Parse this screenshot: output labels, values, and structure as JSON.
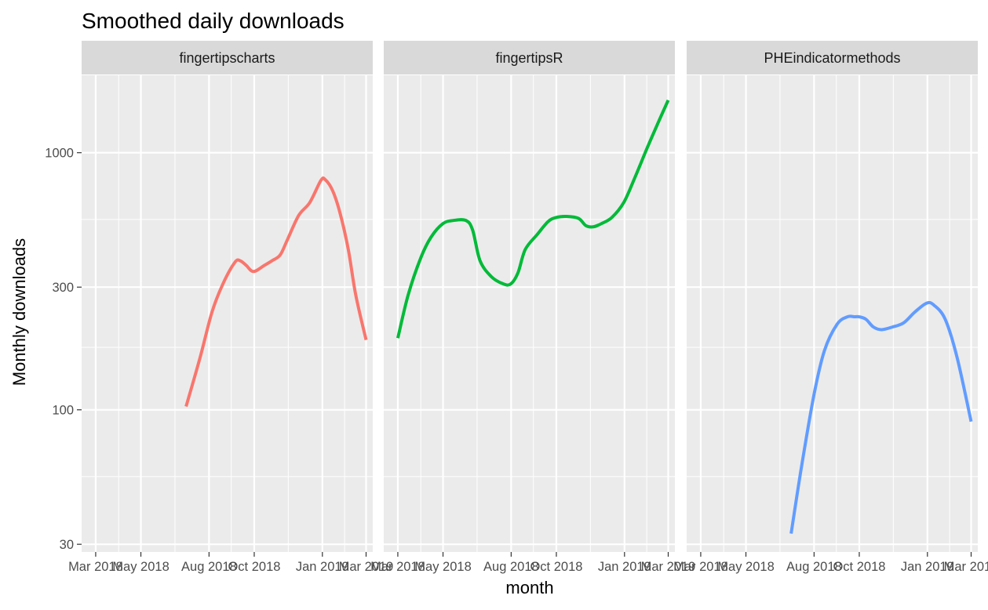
{
  "chart_data": {
    "type": "line",
    "title": "Smoothed daily downloads",
    "xlabel": "month",
    "ylabel": "Monthly downloads",
    "y_scale": "log10",
    "ylim": [
      28,
      2000
    ],
    "y_ticks": [
      {
        "value": 30,
        "label": "30"
      },
      {
        "value": 100,
        "label": "100"
      },
      {
        "value": 300,
        "label": "300"
      },
      {
        "value": 1000,
        "label": "1000"
      }
    ],
    "y_minor_ticks": [
      55,
      175,
      550
    ],
    "xlim": [
      "2018-02-10",
      "2019-03-10"
    ],
    "x_ticks": [
      {
        "value": "2018-03-01",
        "label": "Mar 2018"
      },
      {
        "value": "2018-05-01",
        "label": "May 2018"
      },
      {
        "value": "2018-08-01",
        "label": "Aug 2018"
      },
      {
        "value": "2018-10-01",
        "label": "Oct 2018"
      },
      {
        "value": "2019-01-01",
        "label": "Jan 2019"
      },
      {
        "value": "2019-03-01",
        "label": "Mar 2019"
      }
    ],
    "x_minor_ticks": [
      "2018-04-01",
      "2018-06-16",
      "2018-08-31",
      "2018-11-16",
      "2019-01-31"
    ],
    "grid": true,
    "legend": "none",
    "facets": [
      {
        "label": "fingertipscharts",
        "color": "#F8766D",
        "x": [
          "2018-07-01",
          "2018-07-20",
          "2018-08-05",
          "2018-08-20",
          "2018-09-05",
          "2018-09-12",
          "2018-09-20",
          "2018-09-30",
          "2018-10-15",
          "2018-10-25",
          "2018-11-05",
          "2018-11-15",
          "2018-11-30",
          "2018-12-15",
          "2018-12-30",
          "2019-01-05",
          "2019-01-15",
          "2019-01-25",
          "2019-02-05",
          "2019-02-15",
          "2019-03-01"
        ],
        "values": [
          103,
          160,
          240,
          310,
          375,
          380,
          365,
          345,
          365,
          380,
          400,
          460,
          570,
          640,
          780,
          785,
          710,
          580,
          420,
          280,
          187
        ]
      },
      {
        "label": "fingertipsR",
        "color": "#00BA38",
        "x": [
          "2018-03-01",
          "2018-03-15",
          "2018-04-01",
          "2018-04-15",
          "2018-05-01",
          "2018-05-15",
          "2018-06-01",
          "2018-06-10",
          "2018-06-20",
          "2018-07-05",
          "2018-07-20",
          "2018-07-31",
          "2018-08-10",
          "2018-08-20",
          "2018-09-05",
          "2018-09-20",
          "2018-10-01",
          "2018-10-15",
          "2018-10-31",
          "2018-11-10",
          "2018-11-20",
          "2018-12-01",
          "2018-12-15",
          "2018-12-31",
          "2019-01-15",
          "2019-02-01",
          "2019-02-15",
          "2019-03-01"
        ],
        "values": [
          190,
          280,
          390,
          470,
          530,
          545,
          545,
          500,
          380,
          330,
          310,
          308,
          340,
          420,
          480,
          540,
          560,
          565,
          555,
          520,
          515,
          530,
          560,
          640,
          800,
          1050,
          1300,
          1600
        ]
      },
      {
        "label": "PHEindicatormethods",
        "color": "#619CFF",
        "x": [
          "2018-07-01",
          "2018-07-15",
          "2018-08-01",
          "2018-08-15",
          "2018-09-01",
          "2018-09-15",
          "2018-09-25",
          "2018-10-01",
          "2018-10-10",
          "2018-10-20",
          "2018-10-31",
          "2018-11-15",
          "2018-11-30",
          "2018-12-15",
          "2018-12-31",
          "2019-01-10",
          "2019-01-25",
          "2019-02-10",
          "2019-03-01"
        ],
        "values": [
          33,
          60,
          115,
          170,
          215,
          230,
          230,
          230,
          225,
          210,
          205,
          210,
          218,
          240,
          260,
          255,
          225,
          160,
          90
        ]
      }
    ]
  }
}
